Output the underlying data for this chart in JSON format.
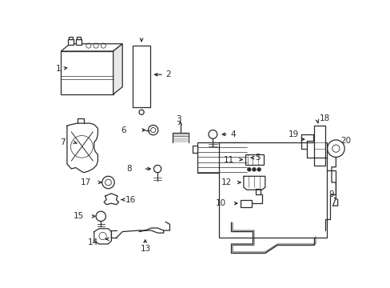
{
  "bg_color": "#ffffff",
  "line_color": "#2a2a2a",
  "fig_width": 4.89,
  "fig_height": 3.6,
  "dpi": 100
}
